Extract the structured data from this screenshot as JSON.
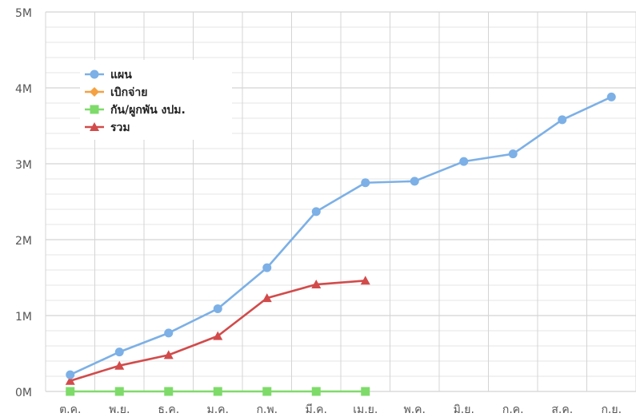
{
  "chart_data": {
    "type": "line",
    "categories": [
      "ต.ค.",
      "พ.ย.",
      "ธ.ค.",
      "ม.ค.",
      "ก.พ.",
      "มี.ค.",
      "เม.ย.",
      "พ.ค.",
      "มิ.ย.",
      "ก.ค.",
      "ส.ค.",
      "ก.ย."
    ],
    "series": [
      {
        "name": "แผน",
        "color": "#7cb0e6",
        "marker": "circle",
        "values": [
          0.22,
          0.52,
          0.77,
          1.09,
          1.63,
          2.37,
          2.75,
          2.77,
          3.03,
          3.13,
          3.58,
          3.88
        ]
      },
      {
        "name": "เบิกจ่าย",
        "color": "#f5a142",
        "marker": "diamond",
        "values": [
          null,
          null,
          null,
          null,
          null,
          null,
          null,
          null,
          null,
          null,
          null,
          null
        ]
      },
      {
        "name": "กัน/ผูกพัน งปม.",
        "color": "#7edb6a",
        "marker": "square",
        "values": [
          0,
          0,
          0,
          0,
          0,
          0,
          0,
          null,
          null,
          null,
          null,
          null
        ]
      },
      {
        "name": "รวม",
        "color": "#d24b4b",
        "marker": "triangle",
        "values": [
          0.14,
          0.34,
          0.48,
          0.73,
          1.23,
          1.41,
          1.46,
          null,
          null,
          null,
          null,
          null
        ]
      }
    ],
    "y_ticks": [
      "0M",
      "1M",
      "2M",
      "3M",
      "4M",
      "5M"
    ],
    "ylim": [
      0,
      5
    ],
    "y_unit": "millions",
    "grid": true,
    "legend_position": "top-left"
  }
}
